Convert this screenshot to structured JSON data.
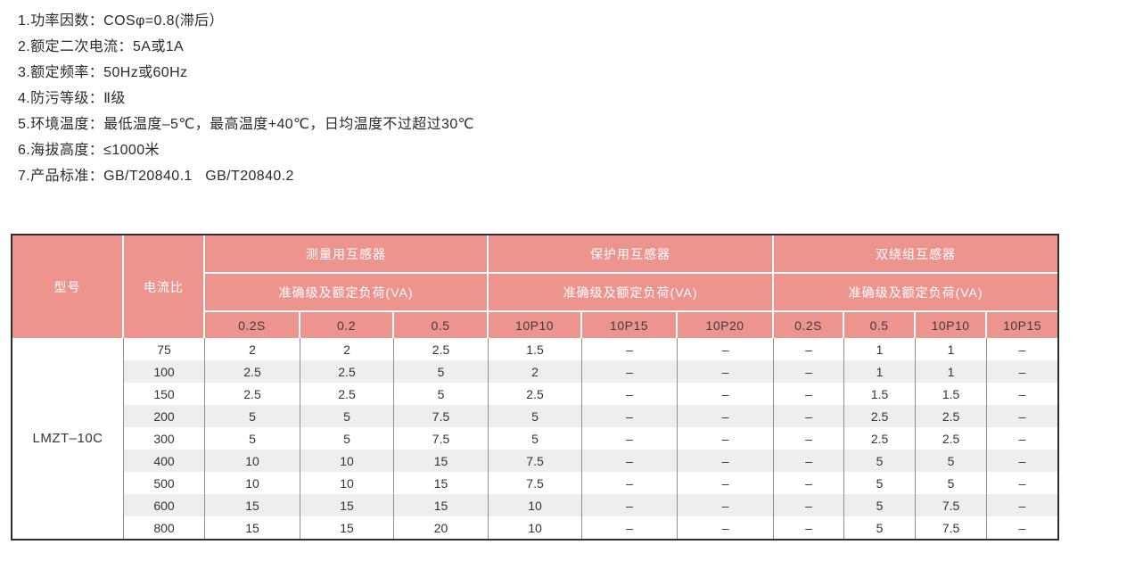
{
  "specs": {
    "items": [
      "1.功率因数：COSφ=0.8(滞后）",
      "2.额定二次电流：5A或1A",
      "3.额定频率：50Hz或60Hz",
      "4.防污等级：Ⅱ级",
      "5.环境温度：最低温度–5℃，最高温度+40℃，日均温度不过超过30℃",
      "6.海拔高度：≤1000米",
      "7.产品标准：GB/T20840.1   GB/T20840.2"
    ]
  },
  "table": {
    "colors": {
      "header_bg": "#ee948e",
      "header_text": "#ffffff",
      "class_row_text": "#3d3d3d",
      "stripe": "#eeeeee",
      "grid_line": "#8f8f8f",
      "outer_border": "#2e2e2e"
    },
    "headers": {
      "model": "型号",
      "ratio": "电流比",
      "groups": [
        {
          "title": "测量用互感器",
          "subtitle": "准确级及额定负荷(VA)",
          "classes": [
            "0.2S",
            "0.2",
            "0.5"
          ]
        },
        {
          "title": "保护用互感器",
          "subtitle": "准确级及额定负荷(VA)",
          "classes": [
            "10P10",
            "10P15",
            "10P20"
          ]
        },
        {
          "title": "双绕组互感器",
          "subtitle": "准确级及额定负荷(VA)",
          "classes": [
            "0.2S",
            "0.5",
            "10P10",
            "10P15"
          ]
        }
      ]
    },
    "model_value": "LMZT–10C",
    "rows": [
      {
        "ratio": "75",
        "values": [
          "2",
          "2",
          "2.5",
          "1.5",
          "–",
          "–",
          "–",
          "1",
          "1",
          "–"
        ]
      },
      {
        "ratio": "100",
        "values": [
          "2.5",
          "2.5",
          "5",
          "2",
          "–",
          "–",
          "–",
          "1",
          "1",
          "–"
        ]
      },
      {
        "ratio": "150",
        "values": [
          "2.5",
          "2.5",
          "5",
          "2.5",
          "–",
          "–",
          "–",
          "1.5",
          "1.5",
          "–"
        ]
      },
      {
        "ratio": "200",
        "values": [
          "5",
          "5",
          "7.5",
          "5",
          "–",
          "–",
          "–",
          "2.5",
          "2.5",
          "–"
        ]
      },
      {
        "ratio": "300",
        "values": [
          "5",
          "5",
          "7.5",
          "5",
          "–",
          "–",
          "–",
          "2.5",
          "2.5",
          "–"
        ]
      },
      {
        "ratio": "400",
        "values": [
          "10",
          "10",
          "15",
          "7.5",
          "–",
          "–",
          "–",
          "5",
          "5",
          "–"
        ]
      },
      {
        "ratio": "500",
        "values": [
          "10",
          "10",
          "15",
          "7.5",
          "–",
          "–",
          "–",
          "5",
          "5",
          "–"
        ]
      },
      {
        "ratio": "600",
        "values": [
          "15",
          "15",
          "15",
          "10",
          "–",
          "–",
          "–",
          "5",
          "7.5",
          "–"
        ]
      },
      {
        "ratio": "800",
        "values": [
          "15",
          "15",
          "20",
          "10",
          "–",
          "–",
          "–",
          "5",
          "7.5",
          "–"
        ]
      }
    ]
  }
}
